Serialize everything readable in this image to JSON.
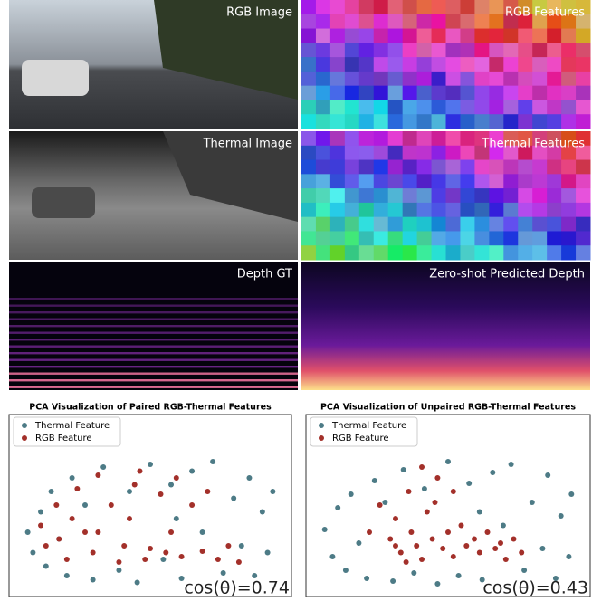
{
  "figure": {
    "panels": [
      {
        "label": "RGB Image"
      },
      {
        "label": "RGB Features"
      },
      {
        "label": "Thermal Image"
      },
      {
        "label": "Thermal Features"
      },
      {
        "label": "Depth GT"
      },
      {
        "label": "Zero-shot Predicted Depth"
      }
    ]
  },
  "chart_data": [
    {
      "type": "scatter",
      "title": "PCA Visualization of Paired RGB-Thermal Features",
      "annotation": "cos(θ)=0.74",
      "xlim": [
        0,
        100
      ],
      "ylim": [
        0,
        100
      ],
      "legend": "upper-left",
      "series": [
        {
          "name": "Thermal Feature",
          "color": "#4d7b86",
          "x": [
            3,
            5,
            8,
            10,
            12,
            15,
            18,
            20,
            25,
            28,
            32,
            38,
            42,
            45,
            50,
            55,
            58,
            62,
            66,
            70,
            74,
            78,
            82,
            85,
            88,
            90,
            93,
            95,
            97,
            60
          ],
          "values": [
            40,
            25,
            55,
            15,
            70,
            35,
            8,
            80,
            60,
            5,
            88,
            12,
            70,
            3,
            90,
            20,
            75,
            6,
            85,
            40,
            92,
            10,
            65,
            30,
            80,
            8,
            55,
            25,
            70,
            50
          ]
        },
        {
          "name": "RGB Feature",
          "color": "#a3302a",
          "x": [
            8,
            10,
            14,
            18,
            22,
            25,
            28,
            30,
            35,
            38,
            40,
            44,
            48,
            50,
            54,
            56,
            60,
            62,
            66,
            70,
            72,
            76,
            80,
            84,
            20,
            42,
            30,
            58,
            15,
            46
          ],
          "values": [
            45,
            30,
            60,
            20,
            72,
            40,
            25,
            82,
            60,
            18,
            30,
            75,
            20,
            28,
            68,
            25,
            80,
            22,
            60,
            26,
            70,
            20,
            30,
            18,
            50,
            50,
            40,
            40,
            35,
            85
          ]
        }
      ]
    },
    {
      "type": "scatter",
      "title": "PCA Visualization of Unpaired RGB-Thermal Features",
      "annotation": "cos(θ)=0.43",
      "xlim": [
        0,
        100
      ],
      "ylim": [
        0,
        100
      ],
      "legend": "upper-left",
      "series": [
        {
          "name": "Thermal Feature",
          "color": "#4d7b86",
          "x": [
            3,
            6,
            8,
            11,
            13,
            16,
            19,
            22,
            26,
            29,
            33,
            37,
            41,
            46,
            50,
            54,
            58,
            63,
            67,
            71,
            74,
            79,
            82,
            86,
            88,
            91,
            93,
            96,
            97,
            62
          ],
          "values": [
            42,
            22,
            58,
            12,
            68,
            32,
            6,
            78,
            62,
            4,
            86,
            10,
            72,
            2,
            92,
            8,
            76,
            5,
            84,
            45,
            90,
            12,
            62,
            28,
            82,
            6,
            52,
            22,
            68,
            55
          ]
        },
        {
          "name": "RGB Feature",
          "color": "#a3302a",
          "x": [
            20,
            24,
            28,
            30,
            32,
            35,
            36,
            38,
            40,
            42,
            44,
            45,
            48,
            50,
            52,
            55,
            57,
            60,
            62,
            65,
            68,
            70,
            72,
            75,
            78,
            46,
            40,
            52,
            30,
            34
          ],
          "values": [
            40,
            60,
            35,
            50,
            25,
            70,
            40,
            30,
            20,
            55,
            35,
            62,
            28,
            40,
            22,
            45,
            30,
            35,
            25,
            40,
            28,
            32,
            20,
            35,
            25,
            80,
            88,
            70,
            30,
            18
          ]
        }
      ]
    }
  ]
}
